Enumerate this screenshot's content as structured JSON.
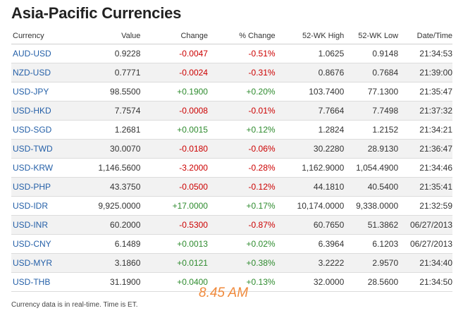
{
  "title": "Asia-Pacific Currencies",
  "colors": {
    "positive": "#2e8b2e",
    "negative": "#cc0000",
    "link": "#2560a8",
    "timestamp": "#f08a3c"
  },
  "columns": [
    "Currency",
    "Value",
    "Change",
    "% Change",
    "52-WK High",
    "52-WK Low",
    "Date/Time"
  ],
  "rows": [
    [
      "AUD-USD",
      "0.9228",
      "-0.0047",
      "-0.51%",
      "1.0625",
      "0.9148",
      "21:34:53"
    ],
    [
      "NZD-USD",
      "0.7771",
      "-0.0024",
      "-0.31%",
      "0.8676",
      "0.7684",
      "21:39:00"
    ],
    [
      "USD-JPY",
      "98.5500",
      "+0.1900",
      "+0.20%",
      "103.7400",
      "77.1300",
      "21:35:47"
    ],
    [
      "USD-HKD",
      "7.7574",
      "-0.0008",
      "-0.01%",
      "7.7664",
      "7.7498",
      "21:37:32"
    ],
    [
      "USD-SGD",
      "1.2681",
      "+0.0015",
      "+0.12%",
      "1.2824",
      "1.2152",
      "21:34:21"
    ],
    [
      "USD-TWD",
      "30.0070",
      "-0.0180",
      "-0.06%",
      "30.2280",
      "28.9130",
      "21:36:47"
    ],
    [
      "USD-KRW",
      "1,146.5600",
      "-3.2000",
      "-0.28%",
      "1,162.9000",
      "1,054.4900",
      "21:34:46"
    ],
    [
      "USD-PHP",
      "43.3750",
      "-0.0500",
      "-0.12%",
      "44.1810",
      "40.5400",
      "21:35:41"
    ],
    [
      "USD-IDR",
      "9,925.0000",
      "+17.0000",
      "+0.17%",
      "10,174.0000",
      "9,338.0000",
      "21:32:59"
    ],
    [
      "USD-INR",
      "60.2000",
      "-0.5300",
      "-0.87%",
      "60.7650",
      "51.3862",
      "06/27/2013"
    ],
    [
      "USD-CNY",
      "6.1489",
      "+0.0013",
      "+0.02%",
      "6.3964",
      "6.1203",
      "06/27/2013"
    ],
    [
      "USD-MYR",
      "3.1860",
      "+0.0121",
      "+0.38%",
      "3.2222",
      "2.9570",
      "21:34:40"
    ],
    [
      "USD-THB",
      "31.1900",
      "+0.0400",
      "+0.13%",
      "32.0000",
      "28.5600",
      "21:34:50"
    ]
  ],
  "timestamp_note": "8.45 AM",
  "footer": "Currency data is in real-time. Time is ET."
}
